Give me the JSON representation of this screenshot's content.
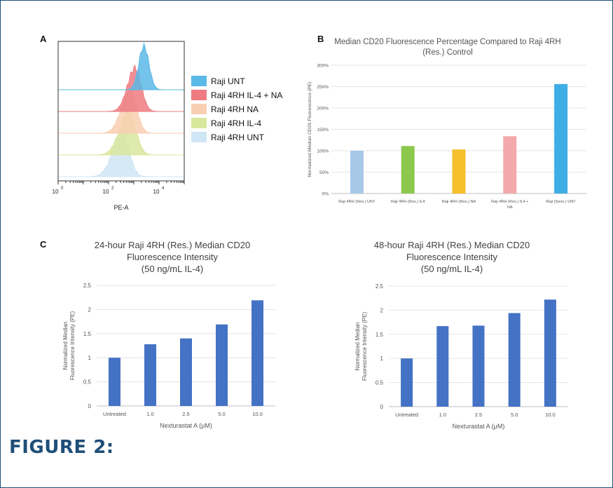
{
  "figure": {
    "label": "FIGURE 2:"
  },
  "panels": {
    "a": "A",
    "b": "B",
    "c": "C"
  },
  "chart_data": [
    {
      "id": "histogram",
      "type": "area",
      "xlabel": "PE-A",
      "x_scale": "log",
      "x_ticks": [
        "10",
        "10",
        "10"
      ],
      "x_tick_exponents": [
        "0",
        "2",
        "4"
      ],
      "legend_position": "right",
      "series": [
        {
          "name": "Raji UNT",
          "color": "#5ab9e6"
        },
        {
          "name": "Raji 4RH IL-4 + NA",
          "color": "#ee7b82"
        },
        {
          "name": "Raji 4RH NA",
          "color": "#f8cfb2"
        },
        {
          "name": "Raji 4RH IL-4",
          "color": "#d9e89c"
        },
        {
          "name": "Raji 4RH UNT",
          "color": "#cfe6f5"
        }
      ]
    },
    {
      "id": "median-percentage",
      "type": "bar",
      "title": "Median CD20 Fluorescence Percentage Compared to Raji 4RH (Res.) Control",
      "ylabel": "Normalized Median CD20 Fluorescence (PE)",
      "ylim": [
        0,
        300
      ],
      "yticks": [
        "0%",
        "50%",
        "100%",
        "150%",
        "200%",
        "250%",
        "300%"
      ],
      "grid": true,
      "categories": [
        "Raji 4RH (Res.) UNT",
        "Raji 4RH (Res.) IL4",
        "Raji 4RH (Res.) NA",
        "Raji 4RH (Res.) IL4 + NA",
        "Raji (Sens.) UNT"
      ],
      "category_lines": [
        [
          "Raji 4RH (Res.) UNT"
        ],
        [
          "Raji 4RH (Res.) IL4"
        ],
        [
          "Raji 4RH (Res.) NA"
        ],
        [
          "Raji 4RH (Res.) IL4 +",
          "NA"
        ],
        [
          "Raji (Sens.) UNT"
        ]
      ],
      "values": [
        100,
        111,
        103,
        134,
        256
      ],
      "colors": [
        "#a8c8e8",
        "#8cc84b",
        "#f5c02c",
        "#f4a9ab",
        "#3fade6"
      ]
    },
    {
      "id": "intensity-24h",
      "type": "bar",
      "title_lines": [
        "24-hour Raji 4RH (Res.) Median CD20",
        "Fluorescence Intensity",
        "(50 ng/mL IL-4)"
      ],
      "ylabel_lines": [
        "Normalized Median",
        "Fluorescence Intensity (PE)"
      ],
      "xlabel": "Nexturastat A (μM)",
      "ylim": [
        0,
        2.5
      ],
      "yticks": [
        "0",
        "0.5",
        "1",
        "1.5",
        "2",
        "2.5"
      ],
      "grid": true,
      "categories": [
        "Untreated",
        "1.0",
        "2.5",
        "5.0",
        "10.0"
      ],
      "values": [
        1.0,
        1.28,
        1.4,
        1.69,
        2.19
      ],
      "color": "#4472c4"
    },
    {
      "id": "intensity-48h",
      "type": "bar",
      "title_lines": [
        "48-hour Raji 4RH (Res.) Median CD20",
        "Fluorescence Intensity",
        "(50 ng/mL IL-4)"
      ],
      "ylabel_lines": [
        "Normalized Median",
        "Fluorescence Intensity (PE)"
      ],
      "xlabel": "Nexturastat A (μM)",
      "ylim": [
        0,
        2.5
      ],
      "yticks": [
        "0",
        "0.5",
        "1",
        "1.5",
        "2",
        "2.5"
      ],
      "grid": true,
      "categories": [
        "Untreated",
        "1.0",
        "2.5",
        "5.0",
        "10.0"
      ],
      "values": [
        1.0,
        1.67,
        1.68,
        1.94,
        2.22
      ],
      "color": "#4472c4"
    }
  ]
}
